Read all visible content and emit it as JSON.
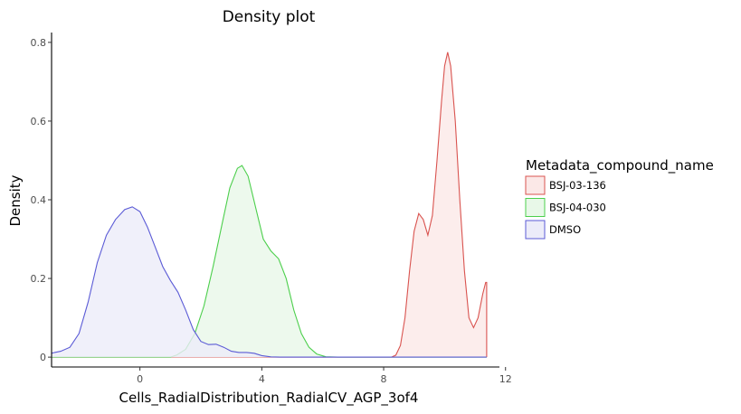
{
  "chart_data": {
    "type": "area",
    "title": "Density plot",
    "xlabel": "Cells_RadialDistribution_RadialCV_AGP_3of4",
    "ylabel": "Density",
    "xlim": [
      -2.9,
      11.8
    ],
    "ylim": [
      -0.025,
      0.825
    ],
    "x_ticks": [
      0,
      4,
      8,
      12
    ],
    "x_tick_labels": [
      "0",
      "4",
      "8",
      "12"
    ],
    "y_ticks": [
      0,
      0.2,
      0.4,
      0.6,
      0.8
    ],
    "y_tick_labels": [
      "0",
      "0.2",
      "0.4",
      "0.6",
      "0.8"
    ],
    "grid": false,
    "legend": {
      "title": "Metadata_compound_name",
      "position": "right"
    },
    "series": [
      {
        "name": "BSJ-03-136",
        "color": "#d9534f",
        "fill": "#fbe8e7",
        "points": [
          [
            -2.9,
            0
          ],
          [
            8.25,
            0
          ],
          [
            8.4,
            0.005
          ],
          [
            8.55,
            0.03
          ],
          [
            8.7,
            0.1
          ],
          [
            8.85,
            0.22
          ],
          [
            9.0,
            0.32
          ],
          [
            9.15,
            0.365
          ],
          [
            9.3,
            0.35
          ],
          [
            9.45,
            0.31
          ],
          [
            9.6,
            0.36
          ],
          [
            9.75,
            0.5
          ],
          [
            9.9,
            0.65
          ],
          [
            10.0,
            0.74
          ],
          [
            10.1,
            0.775
          ],
          [
            10.2,
            0.74
          ],
          [
            10.35,
            0.6
          ],
          [
            10.5,
            0.4
          ],
          [
            10.65,
            0.22
          ],
          [
            10.8,
            0.1
          ],
          [
            10.95,
            0.075
          ],
          [
            11.1,
            0.1
          ],
          [
            11.25,
            0.16
          ],
          [
            11.35,
            0.19
          ],
          [
            11.38,
            0.19
          ],
          [
            11.38,
            0
          ]
        ]
      },
      {
        "name": "BSJ-04-030",
        "color": "#4ccf4c",
        "fill": "#e8f8e8",
        "points": [
          [
            -2.9,
            0
          ],
          [
            1.0,
            0
          ],
          [
            1.2,
            0.005
          ],
          [
            1.5,
            0.02
          ],
          [
            1.8,
            0.06
          ],
          [
            2.1,
            0.13
          ],
          [
            2.4,
            0.23
          ],
          [
            2.7,
            0.34
          ],
          [
            2.95,
            0.43
          ],
          [
            3.2,
            0.48
          ],
          [
            3.35,
            0.487
          ],
          [
            3.55,
            0.46
          ],
          [
            3.8,
            0.38
          ],
          [
            4.05,
            0.3
          ],
          [
            4.3,
            0.27
          ],
          [
            4.55,
            0.25
          ],
          [
            4.8,
            0.2
          ],
          [
            5.05,
            0.12
          ],
          [
            5.3,
            0.06
          ],
          [
            5.55,
            0.025
          ],
          [
            5.8,
            0.008
          ],
          [
            6.1,
            0.001
          ],
          [
            6.5,
            0
          ],
          [
            11.38,
            0
          ]
        ]
      },
      {
        "name": "DMSO",
        "color": "#5b5bd6",
        "fill": "#ececf9",
        "points": [
          [
            -2.9,
            0.01
          ],
          [
            -2.8,
            0.012
          ],
          [
            -2.6,
            0.015
          ],
          [
            -2.3,
            0.025
          ],
          [
            -2.0,
            0.06
          ],
          [
            -1.7,
            0.14
          ],
          [
            -1.4,
            0.24
          ],
          [
            -1.1,
            0.31
          ],
          [
            -0.8,
            0.35
          ],
          [
            -0.5,
            0.375
          ],
          [
            -0.25,
            0.382
          ],
          [
            0.0,
            0.37
          ],
          [
            0.25,
            0.33
          ],
          [
            0.5,
            0.28
          ],
          [
            0.75,
            0.23
          ],
          [
            1.0,
            0.195
          ],
          [
            1.25,
            0.165
          ],
          [
            1.5,
            0.12
          ],
          [
            1.75,
            0.07
          ],
          [
            2.0,
            0.04
          ],
          [
            2.25,
            0.032
          ],
          [
            2.5,
            0.033
          ],
          [
            2.75,
            0.025
          ],
          [
            3.0,
            0.015
          ],
          [
            3.25,
            0.012
          ],
          [
            3.5,
            0.012
          ],
          [
            3.75,
            0.01
          ],
          [
            4.0,
            0.004
          ],
          [
            4.3,
            0.0008
          ],
          [
            4.6,
            0
          ],
          [
            11.38,
            0
          ]
        ]
      }
    ]
  }
}
